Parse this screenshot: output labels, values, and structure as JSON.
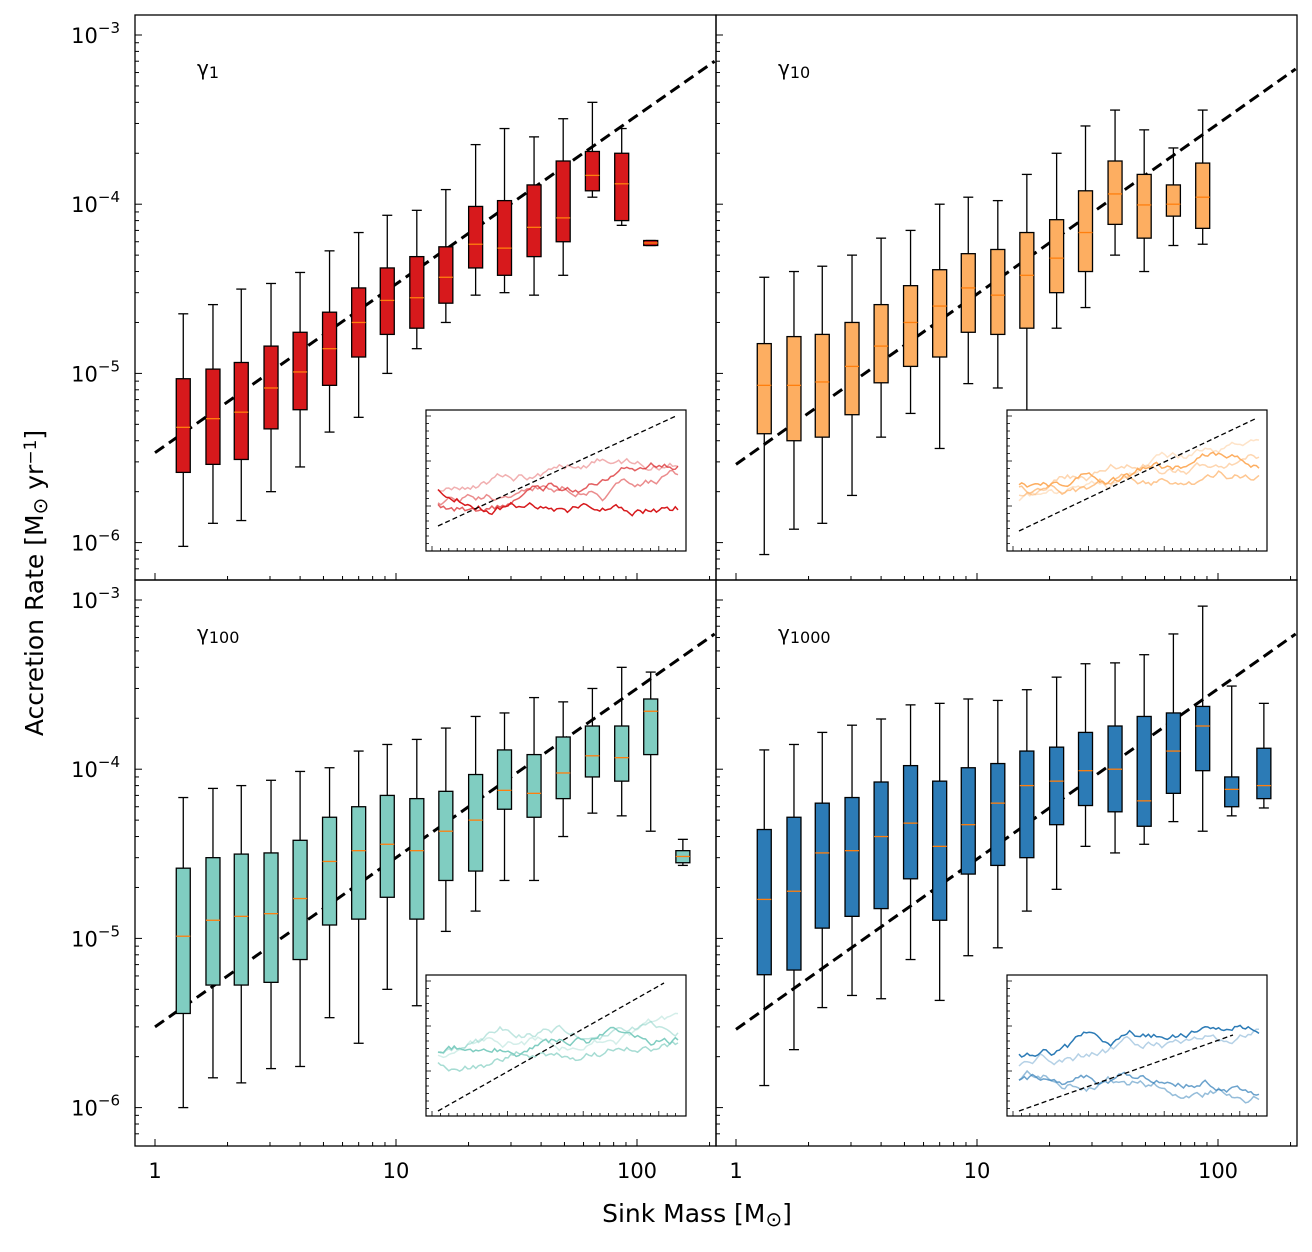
{
  "figure": {
    "xlabel": "Sink Mass [M",
    "xlabel_sub": "⊙",
    "xlabel_end": "]",
    "ylabel": "Accretion Rate [M",
    "ylabel_sub": "⊙",
    "ylabel_mid": " yr",
    "ylabel_sup": "−1",
    "ylabel_end": "]",
    "x_tick_labels": [
      "1",
      "10",
      "100"
    ],
    "y_tick_bases": [
      "10",
      "10",
      "10",
      "10"
    ],
    "y_tick_exps": [
      "−3",
      "−4",
      "−5",
      "−6"
    ]
  },
  "chart_data": [
    {
      "type": "box",
      "panel": "γ1",
      "label_main": "γ",
      "label_sub": "1",
      "color": "#d7191c",
      "x_scale": "log",
      "y_scale": "log",
      "xlim": [
        0.85,
        210
      ],
      "ylim": [
        6e-07,
        0.0013
      ],
      "fit_line": {
        "x": [
          1,
          210
        ],
        "y": [
          3.4e-06,
          0.0007
        ]
      },
      "x": [
        1.31,
        1.74,
        2.28,
        3.03,
        4.0,
        5.3,
        7.0,
        9.2,
        12.2,
        16.1,
        21.4,
        28.2,
        37.4,
        49.4,
        65.3,
        86.4,
        114
      ],
      "whislo": [
        9.5e-07,
        1.3e-06,
        1.35e-06,
        2e-06,
        2.8e-06,
        4.5e-06,
        5.5e-06,
        1e-05,
        1.4e-05,
        2e-05,
        2.9e-05,
        3e-05,
        2.9e-05,
        3.8e-05,
        0.00011,
        7.5e-05,
        5.7e-05
      ],
      "q1": [
        2.6e-06,
        2.9e-06,
        3.1e-06,
        4.7e-06,
        6.1e-06,
        8.5e-06,
        1.25e-05,
        1.7e-05,
        1.85e-05,
        2.6e-05,
        4.2e-05,
        3.8e-05,
        4.9e-05,
        6e-05,
        0.00012,
        8e-05,
        5.7e-05
      ],
      "med": [
        4.8e-06,
        5.4e-06,
        5.9e-06,
        8.2e-06,
        1.02e-05,
        1.4e-05,
        2e-05,
        2.7e-05,
        2.8e-05,
        3.7e-05,
        5.8e-05,
        5.5e-05,
        7.3e-05,
        8.3e-05,
        0.000148,
        0.000132,
        5.9e-05
      ],
      "q3": [
        9.3e-06,
        1.06e-05,
        1.16e-05,
        1.45e-05,
        1.75e-05,
        2.3e-05,
        3.2e-05,
        4.2e-05,
        4.9e-05,
        5.6e-05,
        9.7e-05,
        0.000105,
        0.00013,
        0.00018,
        0.000205,
        0.0002,
        6.1e-05
      ],
      "whishi": [
        2.25e-05,
        2.55e-05,
        3.15e-05,
        3.4e-05,
        3.95e-05,
        5.3e-05,
        6.8e-05,
        8.6e-05,
        9.2e-05,
        0.000122,
        0.000225,
        0.00028,
        0.00025,
        0.00032,
        0.0004,
        0.00028,
        6.1e-05
      ],
      "inset_series_count": 4
    },
    {
      "type": "box",
      "panel": "γ10",
      "label_main": "γ",
      "label_sub": "10",
      "color": "#fdae61",
      "x_scale": "log",
      "y_scale": "log",
      "xlim": [
        0.85,
        210
      ],
      "ylim": [
        6e-07,
        0.0013
      ],
      "fit_line": {
        "x": [
          1,
          210
        ],
        "y": [
          2.9e-06,
          0.00063
        ]
      },
      "x": [
        1.31,
        1.74,
        2.28,
        3.03,
        4.0,
        5.3,
        7.0,
        9.2,
        12.2,
        16.1,
        21.4,
        28.2,
        37.4,
        49.4,
        65.3,
        86.4
      ],
      "whislo": [
        8.5e-07,
        1.2e-06,
        1.3e-06,
        1.9e-06,
        4.2e-06,
        5.8e-06,
        3.6e-06,
        8.7e-06,
        8.2e-06,
        6e-06,
        1.85e-05,
        2.45e-05,
        5e-05,
        4e-05,
        5.7e-05,
        5.8e-05
      ],
      "q1": [
        4.4e-06,
        4e-06,
        4.2e-06,
        5.7e-06,
        8.8e-06,
        1.1e-05,
        1.25e-05,
        1.75e-05,
        1.7e-05,
        1.85e-05,
        3e-05,
        4e-05,
        7.6e-05,
        6.3e-05,
        8.5e-05,
        7.2e-05
      ],
      "med": [
        8.5e-06,
        8.5e-06,
        8.9e-06,
        1.1e-05,
        1.45e-05,
        2e-05,
        2.5e-05,
        3.2e-05,
        2.9e-05,
        3.8e-05,
        4.8e-05,
        6.8e-05,
        0.000115,
        9.9e-05,
        0.0001,
        0.00011
      ],
      "q3": [
        1.5e-05,
        1.65e-05,
        1.7e-05,
        2e-05,
        2.55e-05,
        3.3e-05,
        4.1e-05,
        5.1e-05,
        5.4e-05,
        6.8e-05,
        8.1e-05,
        0.00012,
        0.00018,
        0.00015,
        0.00013,
        0.000175
      ],
      "whishi": [
        3.7e-05,
        4e-05,
        4.3e-05,
        5e-05,
        6.3e-05,
        7e-05,
        0.0001,
        0.00011,
        0.000105,
        0.00015,
        0.0002,
        0.00029,
        0.00036,
        0.000275,
        0.000215,
        0.00036
      ],
      "inset_series_count": 4
    },
    {
      "type": "box",
      "panel": "γ100",
      "label_main": "γ",
      "label_sub": "100",
      "color": "#80cdc1",
      "x_scale": "log",
      "y_scale": "log",
      "xlim": [
        0.85,
        210
      ],
      "ylim": [
        6e-07,
        0.0013
      ],
      "fit_line": {
        "x": [
          1,
          210
        ],
        "y": [
          3e-06,
          0.00063
        ]
      },
      "x": [
        1.31,
        1.74,
        2.28,
        3.03,
        4.0,
        5.3,
        7.0,
        9.2,
        12.2,
        16.1,
        21.4,
        28.2,
        37.4,
        49.4,
        65.3,
        86.4,
        114,
        155
      ],
      "whislo": [
        1e-06,
        1.5e-06,
        1.4e-06,
        1.7e-06,
        1.75e-06,
        3.4e-06,
        2.4e-06,
        5e-06,
        4e-06,
        1.1e-05,
        1.45e-05,
        2.2e-05,
        2.2e-05,
        4e-05,
        5.5e-05,
        5.3e-05,
        4.3e-05,
        2.7e-05
      ],
      "q1": [
        3.6e-06,
        5.3e-06,
        5.3e-06,
        5.5e-06,
        7.5e-06,
        1.2e-05,
        1.3e-05,
        1.75e-05,
        1.3e-05,
        2.2e-05,
        2.5e-05,
        5.8e-05,
        5.2e-05,
        6.7e-05,
        9e-05,
        8.5e-05,
        0.000122,
        2.8e-05
      ],
      "med": [
        1.03e-05,
        1.28e-05,
        1.35e-05,
        1.4e-05,
        1.72e-05,
        2.85e-05,
        3.3e-05,
        3.6e-05,
        3.3e-05,
        4.3e-05,
        5e-05,
        7.5e-05,
        7.2e-05,
        9.5e-05,
        0.00012,
        0.000117,
        0.00022,
        3.05e-05
      ],
      "q3": [
        2.6e-05,
        3e-05,
        3.15e-05,
        3.2e-05,
        3.8e-05,
        5.2e-05,
        6e-05,
        7e-05,
        6.7e-05,
        7.4e-05,
        9.3e-05,
        0.00013,
        0.000122,
        0.000155,
        0.00018,
        0.00018,
        0.00026,
        3.3e-05
      ],
      "whishi": [
        6.8e-05,
        7.7e-05,
        8e-05,
        8.6e-05,
        9.7e-05,
        0.000102,
        0.000128,
        0.00014,
        0.00015,
        0.000175,
        0.000205,
        0.000215,
        0.000265,
        0.00025,
        0.0003,
        0.0004,
        0.000375,
        3.85e-05
      ],
      "inset_series_count": 4
    },
    {
      "type": "box",
      "panel": "γ1000",
      "label_main": "γ",
      "label_sub": "1000",
      "color": "#2c7bb6",
      "x_scale": "log",
      "y_scale": "log",
      "xlim": [
        0.85,
        210
      ],
      "ylim": [
        6e-07,
        0.0013
      ],
      "fit_line": {
        "x": [
          1,
          210
        ],
        "y": [
          2.9e-06,
          0.00063
        ]
      },
      "x": [
        1.31,
        1.74,
        2.28,
        3.03,
        4.0,
        5.3,
        7.0,
        9.2,
        12.2,
        16.1,
        21.4,
        28.2,
        37.4,
        49.4,
        65.3,
        86.4,
        114,
        155
      ],
      "whislo": [
        1.35e-06,
        2.2e-06,
        3.9e-06,
        4.6e-06,
        4.4e-06,
        7.5e-06,
        4.3e-06,
        7.9e-06,
        8.8e-06,
        1.45e-05,
        1.95e-05,
        3.5e-05,
        3.2e-05,
        3.6e-05,
        4.9e-05,
        4.3e-05,
        5.3e-05,
        5.9e-05
      ],
      "q1": [
        6.1e-06,
        6.5e-06,
        1.15e-05,
        1.35e-05,
        1.5e-05,
        2.25e-05,
        1.28e-05,
        2.4e-05,
        2.7e-05,
        3e-05,
        4.7e-05,
        6.1e-05,
        5.6e-05,
        4.6e-05,
        7.2e-05,
        9.8e-05,
        6e-05,
        6.7e-05
      ],
      "med": [
        1.7e-05,
        1.9e-05,
        3.2e-05,
        3.3e-05,
        4e-05,
        4.8e-05,
        3.5e-05,
        4.7e-05,
        6.3e-05,
        8e-05,
        8.5e-05,
        9.8e-05,
        0.0001,
        6.5e-05,
        0.000128,
        0.00018,
        7.6e-05,
        8e-05
      ],
      "q3": [
        4.4e-05,
        5.2e-05,
        6.3e-05,
        6.8e-05,
        8.4e-05,
        0.000105,
        8.5e-05,
        0.000102,
        0.000108,
        0.000128,
        0.000135,
        0.000165,
        0.00018,
        0.000205,
        0.000215,
        0.000235,
        9e-05,
        0.000133
      ],
      "whishi": [
        0.00013,
        0.00014,
        0.000165,
        0.000182,
        0.000198,
        0.00024,
        0.000245,
        0.00026,
        0.000255,
        0.000295,
        0.00035,
        0.00042,
        0.000425,
        0.000475,
        0.00063,
        0.00092,
        0.00031,
        0.000245
      ],
      "inset_series_count": 4
    }
  ]
}
